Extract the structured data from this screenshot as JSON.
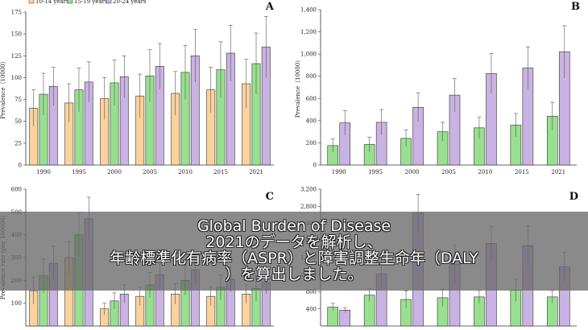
{
  "colors": {
    "s1": "#fbd29b",
    "s2": "#98e08f",
    "s3": "#c9b3e2",
    "stroke": "#333333",
    "error": "#555555"
  },
  "caption": {
    "line1": "Global Burden of Disease",
    "line2": "2021のデータを解析し、",
    "line3": "年齢標準化有病率（ASPR）と障害調整生命年（DALY",
    "line4": "）を算出しました。"
  },
  "chart_data": [
    {
      "panel": "A",
      "type": "bar",
      "categories": [
        "1990",
        "1995",
        "2000",
        "2005",
        "2010",
        "2015",
        "2021"
      ],
      "legend": [
        "10-14 years",
        "15-19 years",
        "20-24 years"
      ],
      "ylabel": "Prevalence（10000）",
      "ylim": [
        0,
        175
      ],
      "yticks": [
        0,
        25,
        50,
        75,
        100,
        125,
        150,
        175
      ],
      "series": [
        {
          "name": "10-14 years",
          "color_key": "s1",
          "values": [
            65,
            71,
            76,
            79,
            82,
            86,
            93
          ],
          "err": [
            21,
            22,
            24,
            25,
            25,
            26,
            28
          ]
        },
        {
          "name": "15-19 years",
          "color_key": "s2",
          "values": [
            81,
            86,
            94,
            102,
            106,
            109,
            116
          ],
          "err": [
            24,
            25,
            26,
            30,
            31,
            32,
            35
          ]
        },
        {
          "name": "20-24 years",
          "color_key": "s3",
          "values": [
            90,
            95,
            101,
            113,
            125,
            128,
            135
          ],
          "err": [
            22,
            23,
            24,
            26,
            30,
            32,
            35
          ]
        }
      ]
    },
    {
      "panel": "B",
      "type": "bar",
      "categories": [
        "1990",
        "1995",
        "2000",
        "2005",
        "2010",
        "2015",
        "2021"
      ],
      "ylabel": "Prevalence（10000）",
      "ylim": [
        0,
        1400
      ],
      "yticks": [
        0,
        200,
        400,
        600,
        800,
        1000,
        1200,
        1400
      ],
      "series": [
        {
          "color_key": "s2",
          "values": [
            175,
            185,
            240,
            300,
            335,
            360,
            440
          ],
          "err": [
            60,
            65,
            75,
            85,
            95,
            105,
            125
          ]
        },
        {
          "color_key": "s3",
          "values": [
            380,
            385,
            520,
            630,
            825,
            875,
            1020
          ],
          "err": [
            110,
            115,
            130,
            150,
            180,
            190,
            235
          ]
        }
      ]
    },
    {
      "panel": "C",
      "type": "bar",
      "categories": [
        "1990",
        "1995",
        "2000",
        "2005",
        "2010",
        "2015",
        "2021"
      ],
      "ylabel": "Prevalence rate (per 100000)",
      "ylim": [
        0,
        600
      ],
      "yticks": [
        100,
        200,
        300,
        400,
        500,
        600
      ],
      "series": [
        {
          "color_key": "s1",
          "values": [
            155,
            300,
            75,
            130,
            140,
            130,
            140
          ],
          "err": [
            60,
            70,
            25,
            40,
            45,
            40,
            40
          ]
        },
        {
          "color_key": "s2",
          "values": [
            220,
            400,
            110,
            180,
            200,
            170,
            165
          ],
          "err": [
            75,
            95,
            35,
            55,
            65,
            55,
            55
          ]
        },
        {
          "color_key": "s3",
          "values": [
            275,
            470,
            140,
            225,
            245,
            205,
            190
          ],
          "err": [
            75,
            95,
            40,
            60,
            65,
            55,
            50
          ]
        }
      ]
    },
    {
      "panel": "D",
      "type": "bar",
      "categories": [
        "1990",
        "1995",
        "2000",
        "2005",
        "2010",
        "2015",
        "2021"
      ],
      "ylim": [
        0,
        3200
      ],
      "yticks": [
        400,
        800,
        1200,
        1600,
        2000,
        2400,
        2800,
        3200
      ],
      "series": [
        {
          "color_key": "s2",
          "values": [
            440,
            720,
            620,
            660,
            680,
            840,
            680
          ],
          "err": [
            90,
            150,
            200,
            200,
            150,
            260,
            150
          ]
        },
        {
          "color_key": "s3",
          "values": [
            370,
            1220,
            2640,
            1440,
            1930,
            1880,
            1380
          ],
          "err": [
            60,
            350,
            440,
            450,
            400,
            460,
            340
          ]
        }
      ]
    }
  ]
}
